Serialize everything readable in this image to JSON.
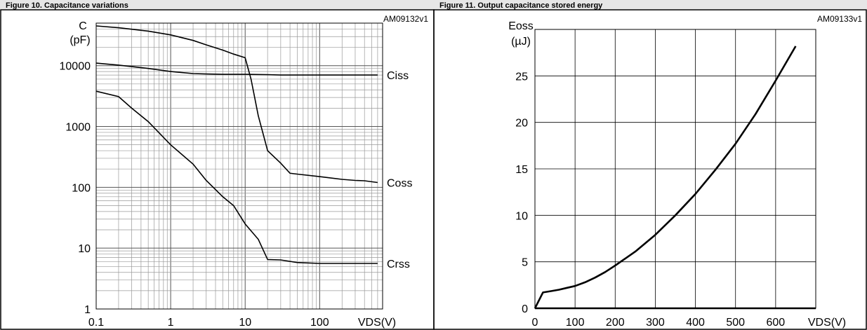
{
  "header": {
    "left_caption": "Figure 10. Capacitance variations",
    "right_caption": "Figure 11. Output capacitance stored energy"
  },
  "chart_data": [
    {
      "type": "line",
      "code": "AM09132v1",
      "ylabel_line1": "C",
      "ylabel_line2": "(pF)",
      "xlabel": "VDS(V)",
      "xscale": "log",
      "yscale": "log",
      "xlim": [
        0.1,
        700
      ],
      "ylim": [
        1,
        50000
      ],
      "grid": true,
      "x_ticks": [
        {
          "v": 0.1,
          "label": "0.1"
        },
        {
          "v": 1,
          "label": "1"
        },
        {
          "v": 10,
          "label": "10"
        },
        {
          "v": 100,
          "label": "100"
        }
      ],
      "y_ticks": [
        {
          "v": 1,
          "label": "1"
        },
        {
          "v": 10,
          "label": "10"
        },
        {
          "v": 100,
          "label": "100"
        },
        {
          "v": 1000,
          "label": "1000"
        },
        {
          "v": 10000,
          "label": "10000"
        }
      ],
      "series": [
        {
          "name": "Ciss",
          "x": [
            0.1,
            0.2,
            0.5,
            1,
            2,
            3,
            5,
            10,
            20,
            30,
            50,
            100,
            200,
            600
          ],
          "y": [
            11000,
            10200,
            9000,
            8000,
            7400,
            7300,
            7200,
            7200,
            7100,
            7000,
            7000,
            7000,
            7000,
            7000
          ]
        },
        {
          "name": "Coss",
          "x": [
            0.1,
            0.2,
            0.5,
            1,
            2,
            3,
            5,
            7,
            10,
            12,
            15,
            20,
            30,
            40,
            50,
            100,
            200,
            300,
            400,
            600
          ],
          "y": [
            45000,
            42000,
            37000,
            32000,
            26000,
            22000,
            18000,
            15500,
            13500,
            6000,
            1500,
            400,
            250,
            170,
            165,
            150,
            135,
            130,
            128,
            120
          ]
        },
        {
          "name": "Crss",
          "x": [
            0.1,
            0.2,
            0.3,
            0.5,
            1,
            2,
            3,
            5,
            7,
            10,
            15,
            20,
            30,
            50,
            100,
            200,
            600
          ],
          "y": [
            3800,
            3100,
            2000,
            1200,
            500,
            240,
            130,
            70,
            50,
            25,
            14,
            6.5,
            6.4,
            5.8,
            5.6,
            5.6,
            5.6
          ]
        }
      ]
    },
    {
      "type": "line",
      "code": "AM09133v1",
      "ylabel_line1": "Eoss",
      "ylabel_line2": "(µJ)",
      "xlabel": "VDS(V)",
      "xlim": [
        0,
        700
      ],
      "ylim": [
        0,
        30
      ],
      "grid": true,
      "x_ticks": [
        {
          "v": 0,
          "label": "0"
        },
        {
          "v": 100,
          "label": "100"
        },
        {
          "v": 200,
          "label": "200"
        },
        {
          "v": 300,
          "label": "300"
        },
        {
          "v": 400,
          "label": "400"
        },
        {
          "v": 500,
          "label": "500"
        },
        {
          "v": 600,
          "label": "600"
        }
      ],
      "y_ticks": [
        {
          "v": 0,
          "label": "0"
        },
        {
          "v": 5,
          "label": "5"
        },
        {
          "v": 10,
          "label": "10"
        },
        {
          "v": 15,
          "label": "15"
        },
        {
          "v": 20,
          "label": "20"
        },
        {
          "v": 25,
          "label": "25"
        }
      ],
      "series": [
        {
          "name": "",
          "x": [
            0,
            20,
            40,
            60,
            80,
            100,
            125,
            150,
            175,
            200,
            250,
            300,
            350,
            400,
            450,
            500,
            550,
            600,
            650
          ],
          "y": [
            0,
            1.7,
            1.85,
            2.0,
            2.2,
            2.4,
            2.8,
            3.3,
            3.9,
            4.6,
            6.1,
            7.9,
            10.0,
            12.3,
            14.9,
            17.7,
            20.9,
            24.5,
            28.2
          ]
        }
      ]
    }
  ]
}
